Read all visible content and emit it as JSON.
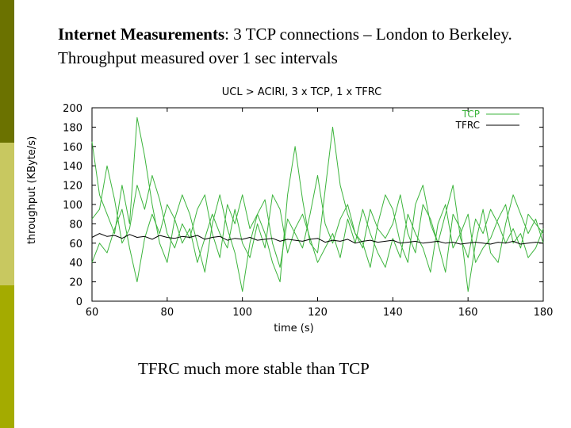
{
  "slide": {
    "title_bold": "Internet Measurements",
    "title_rest": ": 3 TCP connections – London to Berkeley. Throughput measured over 1 sec intervals",
    "caption": "TFRC much more stable than TCP"
  },
  "colors": {
    "band_top": "#6b7200",
    "band_mid": "#c8c860",
    "band_bot": "#a4ab00",
    "tcp": "#3cb43c",
    "tfrc": "#000000"
  },
  "chart_data": {
    "type": "line",
    "title": "UCL  > ACIRI, 3 x TCP, 1 x TFRC",
    "xlabel": "time (s)",
    "ylabel": "throughput (KByte/s)",
    "xlim": [
      60,
      180
    ],
    "ylim": [
      0,
      200
    ],
    "xticks": [
      60,
      80,
      100,
      120,
      140,
      160,
      180
    ],
    "yticks": [
      0,
      20,
      40,
      60,
      80,
      100,
      120,
      140,
      160,
      180,
      200
    ],
    "legend_position": "top-right",
    "series": [
      {
        "name": "TCP",
        "x": [
          60,
          62,
          64,
          66,
          68,
          70,
          72,
          74,
          76,
          78,
          80,
          82,
          84,
          86,
          88,
          90,
          92,
          94,
          96,
          98,
          100,
          102,
          104,
          106,
          108,
          110,
          112,
          114,
          116,
          118,
          120,
          122,
          124,
          126,
          128,
          130,
          132,
          134,
          136,
          138,
          140,
          142,
          144,
          146,
          148,
          150,
          152,
          154,
          156,
          158,
          160,
          162,
          164,
          166,
          168,
          170,
          172,
          174,
          176,
          178,
          180
        ],
        "y": [
          165,
          110,
          90,
          70,
          120,
          80,
          190,
          150,
          100,
          60,
          40,
          85,
          110,
          90,
          60,
          30,
          80,
          110,
          75,
          50,
          10,
          60,
          90,
          70,
          40,
          20,
          110,
          160,
          105,
          60,
          50,
          115,
          180,
          120,
          90,
          70,
          60,
          35,
          80,
          110,
          95,
          60,
          40,
          100,
          120,
          80,
          60,
          30,
          90,
          75,
          10,
          60,
          95,
          50,
          40,
          80,
          110,
          90,
          70,
          85,
          60
        ]
      },
      {
        "name": "",
        "x": [
          60,
          62,
          64,
          66,
          68,
          70,
          72,
          74,
          76,
          78,
          80,
          82,
          84,
          86,
          88,
          90,
          92,
          94,
          96,
          98,
          100,
          102,
          104,
          106,
          108,
          110,
          112,
          114,
          116,
          118,
          120,
          122,
          124,
          126,
          128,
          130,
          132,
          134,
          136,
          138,
          140,
          142,
          144,
          146,
          148,
          150,
          152,
          154,
          156,
          158,
          160,
          162,
          164,
          166,
          168,
          170,
          172,
          174,
          176,
          178,
          180
        ],
        "y": [
          85,
          95,
          140,
          105,
          60,
          75,
          120,
          95,
          130,
          105,
          70,
          55,
          80,
          65,
          95,
          110,
          70,
          45,
          100,
          80,
          110,
          75,
          90,
          105,
          60,
          35,
          85,
          70,
          55,
          90,
          130,
          80,
          60,
          85,
          100,
          70,
          55,
          95,
          75,
          65,
          80,
          110,
          70,
          50,
          100,
          85,
          60,
          90,
          120,
          65,
          45,
          85,
          70,
          95,
          80,
          60,
          75,
          55,
          90,
          80,
          70
        ]
      },
      {
        "name": "",
        "x": [
          60,
          62,
          64,
          66,
          68,
          70,
          72,
          74,
          76,
          78,
          80,
          82,
          84,
          86,
          88,
          90,
          92,
          94,
          96,
          98,
          100,
          102,
          104,
          106,
          108,
          110,
          112,
          114,
          116,
          118,
          120,
          122,
          124,
          126,
          128,
          130,
          132,
          134,
          136,
          138,
          140,
          142,
          144,
          146,
          148,
          150,
          152,
          154,
          156,
          158,
          160,
          162,
          164,
          166,
          168,
          170,
          172,
          174,
          176,
          178,
          180
        ],
        "y": [
          40,
          60,
          50,
          75,
          95,
          55,
          20,
          65,
          90,
          70,
          100,
          85,
          60,
          75,
          40,
          65,
          90,
          70,
          55,
          95,
          60,
          45,
          80,
          55,
          110,
          95,
          50,
          75,
          90,
          65,
          40,
          55,
          70,
          45,
          85,
          60,
          95,
          70,
          50,
          35,
          65,
          45,
          90,
          70,
          55,
          30,
          80,
          100,
          55,
          70,
          90,
          40,
          55,
          65,
          85,
          100,
          60,
          70,
          45,
          55,
          75
        ]
      },
      {
        "name": "TFRC",
        "x": [
          60,
          62,
          64,
          66,
          68,
          70,
          72,
          74,
          76,
          78,
          80,
          82,
          84,
          86,
          88,
          90,
          92,
          94,
          96,
          98,
          100,
          102,
          104,
          106,
          108,
          110,
          112,
          114,
          116,
          118,
          120,
          122,
          124,
          126,
          128,
          130,
          132,
          134,
          136,
          138,
          140,
          142,
          144,
          146,
          148,
          150,
          152,
          154,
          156,
          158,
          160,
          162,
          164,
          166,
          168,
          170,
          172,
          174,
          176,
          178,
          180
        ],
        "y": [
          66,
          70,
          67,
          68,
          65,
          69,
          66,
          67,
          64,
          68,
          66,
          65,
          67,
          66,
          68,
          64,
          66,
          67,
          63,
          65,
          64,
          66,
          63,
          64,
          65,
          62,
          64,
          63,
          62,
          64,
          65,
          61,
          63,
          62,
          64,
          60,
          62,
          63,
          61,
          62,
          63,
          60,
          61,
          62,
          60,
          61,
          62,
          60,
          61,
          59,
          60,
          61,
          60,
          59,
          61,
          60,
          62,
          59,
          60,
          61,
          60
        ]
      }
    ]
  }
}
